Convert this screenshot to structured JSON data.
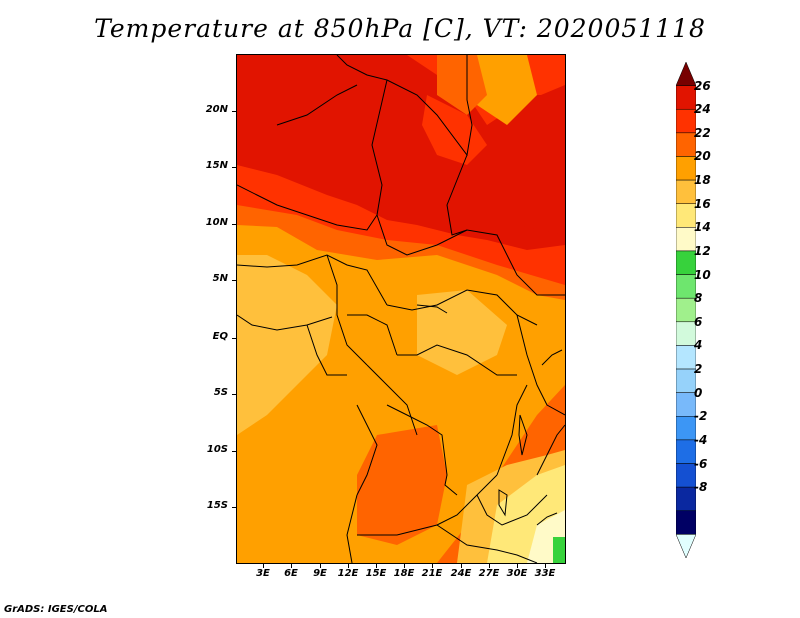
{
  "title": "Temperature at 850hPa [C], VT: 2020051118",
  "credit": "GrADS: IGES/COLA",
  "axes": {
    "lat_labels": [
      "20N",
      "15N",
      "10N",
      "5N",
      "EQ",
      "5S",
      "10S",
      "15S"
    ],
    "lon_labels": [
      "3E",
      "6E",
      "9E",
      "12E",
      "15E",
      "18E",
      "21E",
      "24E",
      "27E",
      "30E",
      "33E"
    ]
  },
  "colorbar": {
    "labels": [
      "26",
      "24",
      "22",
      "20",
      "18",
      "16",
      "14",
      "12",
      "10",
      "8",
      "6",
      "4",
      "2",
      "0",
      "-2",
      "-4",
      "-6",
      "-8"
    ],
    "colors": [
      "#780000",
      "#e11400",
      "#ff3200",
      "#ff6400",
      "#ffa000",
      "#ffc03c",
      "#ffe878",
      "#fffac8",
      "#37d23c",
      "#6ee66e",
      "#a0f08c",
      "#d2fadc",
      "#b4e6ff",
      "#96d2fa",
      "#78b9fa",
      "#3c96f5",
      "#1e6ee6",
      "#1450d2",
      "#0a28a0",
      "#000064",
      "#e1ffff"
    ]
  },
  "palette": {
    "t26": "#e11400",
    "t24": "#ff3200",
    "t22": "#ff6400",
    "t20": "#ffa000",
    "t18": "#ffc03c",
    "t16": "#ffe878",
    "t14": "#fffac8",
    "t12": "#37d23c"
  }
}
